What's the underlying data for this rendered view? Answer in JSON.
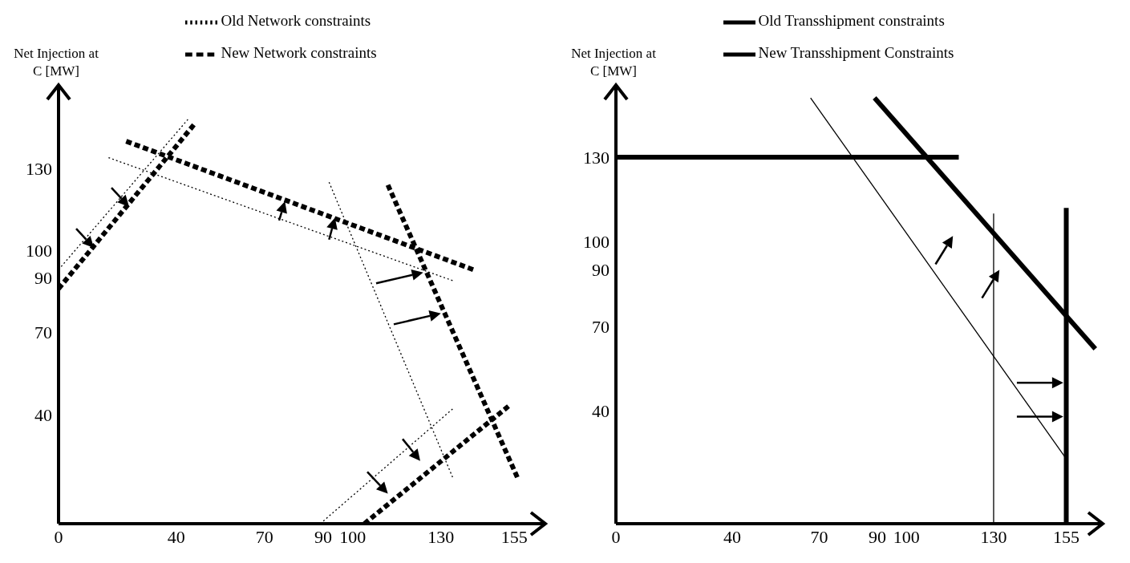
{
  "chart_data": [
    {
      "type": "line",
      "ylabel": "Net Injection at C [MW]",
      "legend": "top",
      "marker": "none",
      "xlim": [
        0,
        165
      ],
      "ylim": [
        0,
        160
      ],
      "xticks": [
        0,
        40,
        70,
        90,
        100,
        130,
        155
      ],
      "yticks": [
        40,
        70,
        90,
        100,
        130
      ],
      "series": [
        {
          "name": "Old Network constraints",
          "color": "#000000",
          "line_style": "dotted",
          "x": [
            0,
            44
          ],
          "values": [
            93,
            148
          ]
        },
        {
          "color": "#000000",
          "line_style": "dotted",
          "x": [
            17,
            134
          ],
          "values": [
            134,
            89
          ]
        },
        {
          "color": "#000000",
          "line_style": "dotted",
          "x": [
            92,
            134
          ],
          "values": [
            125,
            17
          ]
        },
        {
          "color": "#000000",
          "line_style": "dotted",
          "x": [
            89,
            134
          ],
          "values": [
            0,
            42
          ]
        },
        {
          "name": "New Network constraints",
          "color": "#000000",
          "line_style": "dashed",
          "x": [
            0,
            46
          ],
          "values": [
            86,
            146
          ]
        },
        {
          "color": "#000000",
          "line_style": "dashed",
          "x": [
            23,
            141
          ],
          "values": [
            140,
            93
          ]
        },
        {
          "color": "#000000",
          "line_style": "dashed",
          "x": [
            112,
            156
          ],
          "values": [
            124,
            17
          ]
        },
        {
          "color": "#000000",
          "line_style": "dashed",
          "x": [
            104,
            153
          ],
          "values": [
            0,
            43
          ]
        }
      ]
    },
    {
      "type": "line",
      "ylabel": "Net Injection at C [MW]",
      "legend": "top",
      "marker": "none",
      "xlim": [
        0,
        167
      ],
      "ylim": [
        0,
        155
      ],
      "xticks": [
        0,
        40,
        70,
        90,
        100,
        130,
        155
      ],
      "yticks": [
        40,
        70,
        90,
        100,
        130
      ],
      "series": [
        {
          "name": "Old Transshipment constraints",
          "color": "#000000",
          "line_style": "solid",
          "x": [
            67,
            155
          ],
          "values": [
            151,
            23
          ]
        },
        {
          "color": "#000000",
          "line_style": "solid",
          "x": [
            130,
            130
          ],
          "values": [
            0,
            110
          ]
        },
        {
          "name": "New Transshipment Constraints",
          "color": "#000000",
          "line_style": "solid",
          "x": [
            0,
            118
          ],
          "values": [
            130,
            130
          ]
        },
        {
          "color": "#000000",
          "line_style": "solid",
          "x": [
            89,
            165
          ],
          "values": [
            151,
            62
          ]
        },
        {
          "color": "#000000",
          "line_style": "solid",
          "x": [
            155,
            155
          ],
          "values": [
            0,
            112
          ]
        }
      ]
    }
  ]
}
